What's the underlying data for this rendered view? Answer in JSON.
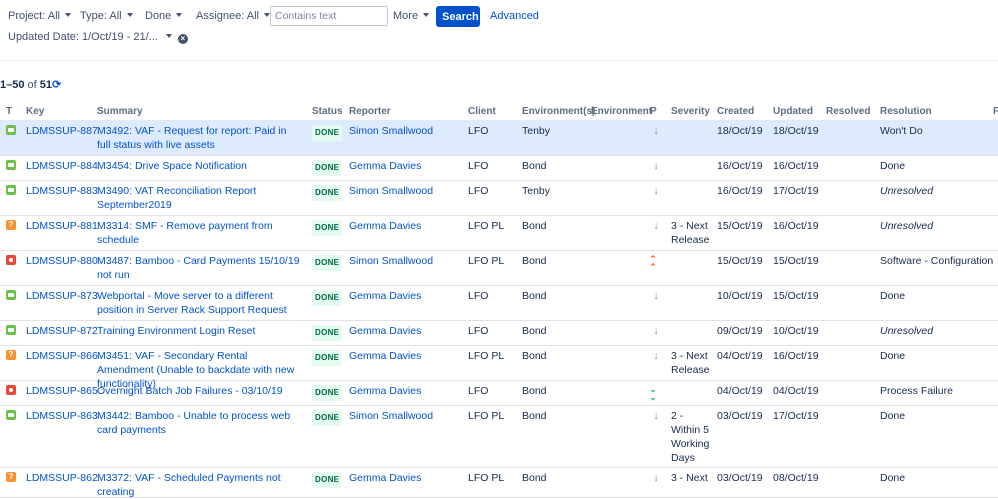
{
  "filters": {
    "project": "Project: All",
    "type": "Type: All",
    "done": "Done",
    "assignee": "Assignee: All",
    "search_placeholder": "Contains text",
    "more": "More",
    "search_button": "Search",
    "advanced": "Advanced",
    "updated_date": "Updated Date: 1/Oct/19 - 21/..."
  },
  "results": {
    "range": "1–50",
    "of": "of",
    "total": "51"
  },
  "columns": {
    "t": "T",
    "key": "Key",
    "summary": "Summary",
    "status": "Status",
    "reporter": "Reporter",
    "client": "Client",
    "environments": "Environment(s)",
    "environment": "Environment",
    "p": "P",
    "severity": "Severity",
    "created": "Created",
    "updated": "Updated",
    "resolved": "Resolved",
    "resolution": "Resolution",
    "extra": "F"
  },
  "colors": {
    "accent": "#0052cc",
    "done_bg": "#e3fcef",
    "done_fg": "#006644",
    "selected_row": "#deebff"
  },
  "rows": [
    {
      "type": "story",
      "key": "LDMSSUP-887",
      "summary": "M3492: VAF - Request for report: Paid in full status with live assets",
      "status": "DONE",
      "reporter": "Simon Smallwood",
      "client": "LFO",
      "environment": "Tenby",
      "priority": "low",
      "severity": "",
      "created": "18/Oct/19",
      "updated": "18/Oct/19",
      "resolution": "Won't Do"
    },
    {
      "type": "story",
      "key": "LDMSSUP-884",
      "summary": "M3454: Drive Space Notification",
      "status": "DONE",
      "reporter": "Gemma Davies",
      "client": "LFO",
      "environment": "Bond",
      "priority": "low",
      "severity": "",
      "created": "16/Oct/19",
      "updated": "16/Oct/19",
      "resolution": "Done"
    },
    {
      "type": "story",
      "key": "LDMSSUP-883",
      "summary": "M3490: VAT Reconciliation Report September2019",
      "status": "DONE",
      "reporter": "Simon Smallwood",
      "client": "LFO",
      "environment": "Tenby",
      "priority": "low",
      "severity": "",
      "created": "16/Oct/19",
      "updated": "17/Oct/19",
      "resolution": "Unresolved"
    },
    {
      "type": "question",
      "key": "LDMSSUP-881",
      "summary": "M3314: SMF - Remove payment from schedule",
      "status": "DONE",
      "reporter": "Gemma Davies",
      "client": "LFO PL",
      "environment": "Bond",
      "priority": "low",
      "severity": "3 - Next Release",
      "created": "15/Oct/19",
      "updated": "16/Oct/19",
      "resolution": "Unresolved"
    },
    {
      "type": "bug",
      "key": "LDMSSUP-880",
      "summary": "M3487: Bamboo - Card Payments 15/10/19 not run",
      "status": "DONE",
      "reporter": "Simon Smallwood",
      "client": "LFO PL",
      "environment": "Bond",
      "priority": "highest",
      "severity": "",
      "created": "15/Oct/19",
      "updated": "15/Oct/19",
      "resolution": "Software - Configuration"
    },
    {
      "type": "story",
      "key": "LDMSSUP-873",
      "summary": "Webportal - Move server to a different position in Server Rack Support Request",
      "status": "DONE",
      "reporter": "Gemma Davies",
      "client": "LFO",
      "environment": "Bond",
      "priority": "low",
      "severity": "",
      "created": "10/Oct/19",
      "updated": "15/Oct/19",
      "resolution": "Done"
    },
    {
      "type": "story",
      "key": "LDMSSUP-872",
      "summary": "Training Environment Login Reset",
      "status": "DONE",
      "reporter": "Gemma Davies",
      "client": "LFO",
      "environment": "Bond",
      "priority": "low",
      "severity": "",
      "created": "09/Oct/19",
      "updated": "10/Oct/19",
      "resolution": "Unresolved"
    },
    {
      "type": "question",
      "key": "LDMSSUP-866",
      "summary": "M3451: VAF - Secondary Rental Amendment (Unable to backdate with new functionality)",
      "status": "DONE",
      "reporter": "Gemma Davies",
      "client": "LFO PL",
      "environment": "Bond",
      "priority": "low",
      "severity": "3 - Next Release",
      "created": "04/Oct/19",
      "updated": "16/Oct/19",
      "resolution": "Done"
    },
    {
      "type": "bug",
      "key": "LDMSSUP-865",
      "summary": "Overnight Batch Job Failures - 03/10/19",
      "status": "DONE",
      "reporter": "Gemma Davies",
      "client": "LFO",
      "environment": "Bond",
      "priority": "lowest",
      "severity": "",
      "created": "04/Oct/19",
      "updated": "04/Oct/19",
      "resolution": "Process Failure"
    },
    {
      "type": "story",
      "key": "LDMSSUP-863",
      "summary": "M3442: Bamboo - Unable to process web card payments",
      "status": "DONE",
      "reporter": "Simon Smallwood",
      "client": "LFO PL",
      "environment": "Bond",
      "priority": "low",
      "severity": "2 - Within 5 Working Days",
      "created": "03/Oct/19",
      "updated": "17/Oct/19",
      "resolution": "Done"
    },
    {
      "type": "question",
      "key": "LDMSSUP-862",
      "summary": "M3372: VAF - Scheduled Payments not creating",
      "status": "DONE",
      "reporter": "Gemma Davies",
      "client": "LFO PL",
      "environment": "Bond",
      "priority": "low",
      "severity": "3 - Next",
      "created": "03/Oct/19",
      "updated": "08/Oct/19",
      "resolution": "Done"
    }
  ]
}
